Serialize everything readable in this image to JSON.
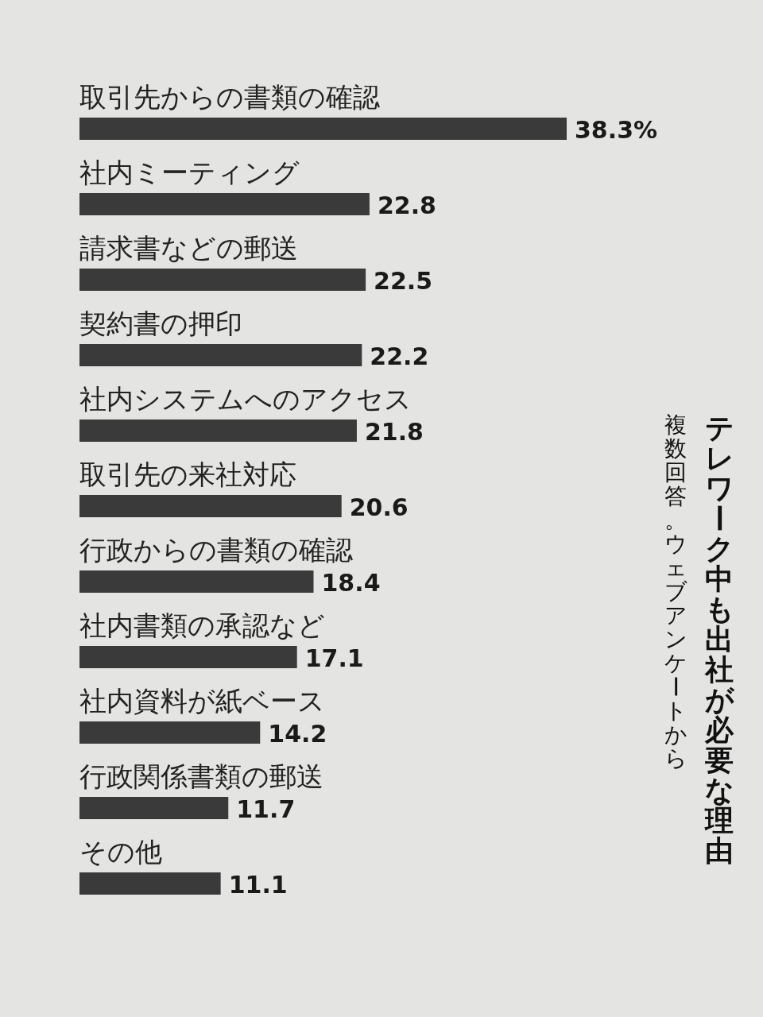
{
  "chart_data": {
    "type": "bar",
    "orientation": "horizontal",
    "title": "テレワーク中も出社が必要な理由",
    "subtitle": "複数回答。ウェブアンケートから",
    "categories": [
      "取引先からの書類の確認",
      "社内ミーティング",
      "請求書などの郵送",
      "契約書の押印",
      "社内システムへのアクセス",
      "取引先の来社対応",
      "行政からの書類の確認",
      "社内書類の承認など",
      "社内資料が紙ベース",
      "行政関係書類の郵送",
      "その他"
    ],
    "values": [
      38.3,
      22.8,
      22.5,
      22.2,
      21.8,
      20.6,
      18.4,
      17.1,
      14.2,
      11.7,
      11.1
    ],
    "value_labels": [
      "38.3%",
      "22.8",
      "22.5",
      "22.2",
      "21.8",
      "20.6",
      "18.4",
      "17.1",
      "14.2",
      "11.7",
      "11.1"
    ],
    "color": "#3a3a3a"
  }
}
